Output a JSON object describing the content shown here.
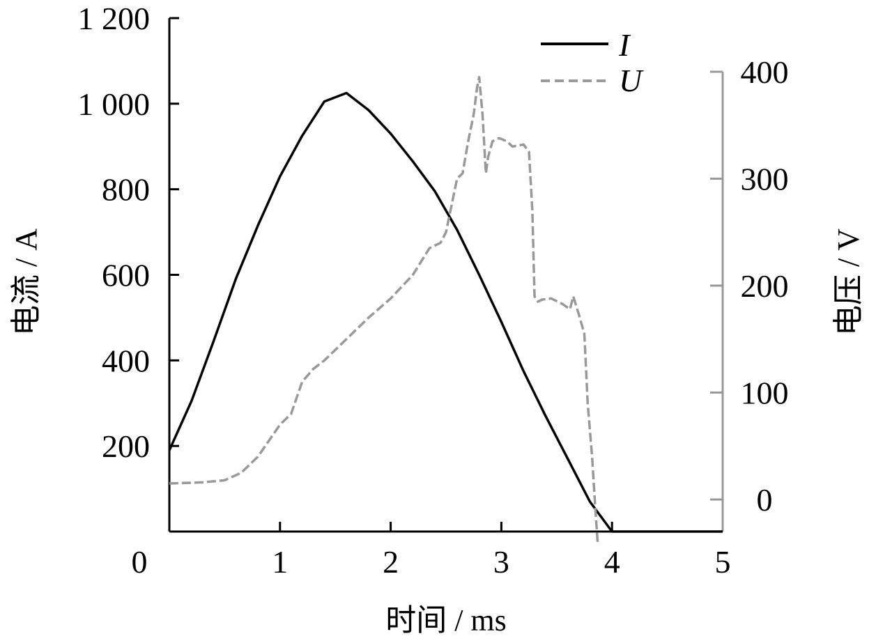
{
  "chart_data": {
    "type": "line",
    "xlabel": "时间 / ms",
    "ylabel_left": "电流 / A",
    "ylabel_right": "电压 / V",
    "xlim": [
      0,
      5
    ],
    "ylim_left": [
      0,
      1200
    ],
    "ylim_right": [
      -30,
      400
    ],
    "x_ticks": [
      "0",
      "1",
      "2",
      "3",
      "4",
      "5"
    ],
    "y_left_ticks": [
      "200",
      "400",
      "600",
      "800",
      "1 000",
      "1 200"
    ],
    "y_right_ticks": [
      "0",
      "100",
      "200",
      "300",
      "400"
    ],
    "grid": false,
    "legend_position": "top-right",
    "colors": {
      "current": "#000000",
      "voltage": "#999999",
      "right_axis": "#999999"
    },
    "series": [
      {
        "name": "I",
        "axis": "left",
        "style": "solid",
        "x": [
          0,
          0.2,
          0.4,
          0.6,
          0.8,
          1.0,
          1.2,
          1.4,
          1.6,
          1.8,
          2.0,
          2.2,
          2.4,
          2.6,
          2.8,
          3.0,
          3.2,
          3.4,
          3.6,
          3.8,
          4.0,
          5.0
        ],
        "y": [
          190,
          305,
          445,
          590,
          715,
          830,
          925,
          1005,
          1025,
          985,
          930,
          865,
          795,
          705,
          600,
          490,
          375,
          270,
          170,
          70,
          0,
          0
        ]
      },
      {
        "name": "U",
        "axis": "right",
        "style": "dashed",
        "x": [
          0,
          0.3,
          0.5,
          0.65,
          0.8,
          0.9,
          1.0,
          1.1,
          1.15,
          1.2,
          1.3,
          1.4,
          1.6,
          1.8,
          2.0,
          2.2,
          2.35,
          2.45,
          2.5,
          2.55,
          2.6,
          2.65,
          2.7,
          2.75,
          2.78,
          2.8,
          2.83,
          2.86,
          2.88,
          2.92,
          2.98,
          3.05,
          3.1,
          3.2,
          3.25,
          3.28,
          3.3,
          3.33,
          3.37,
          3.45,
          3.55,
          3.62,
          3.65,
          3.7,
          3.75,
          3.78,
          3.82,
          3.85,
          3.87
        ],
        "y": [
          15,
          16,
          18,
          25,
          40,
          55,
          70,
          80,
          95,
          110,
          122,
          130,
          150,
          170,
          188,
          210,
          235,
          240,
          250,
          275,
          300,
          305,
          335,
          360,
          385,
          395,
          360,
          305,
          320,
          335,
          338,
          335,
          330,
          332,
          325,
          270,
          190,
          185,
          187,
          188,
          183,
          178,
          190,
          173,
          155,
          90,
          40,
          -10,
          -40
        ]
      }
    ]
  }
}
